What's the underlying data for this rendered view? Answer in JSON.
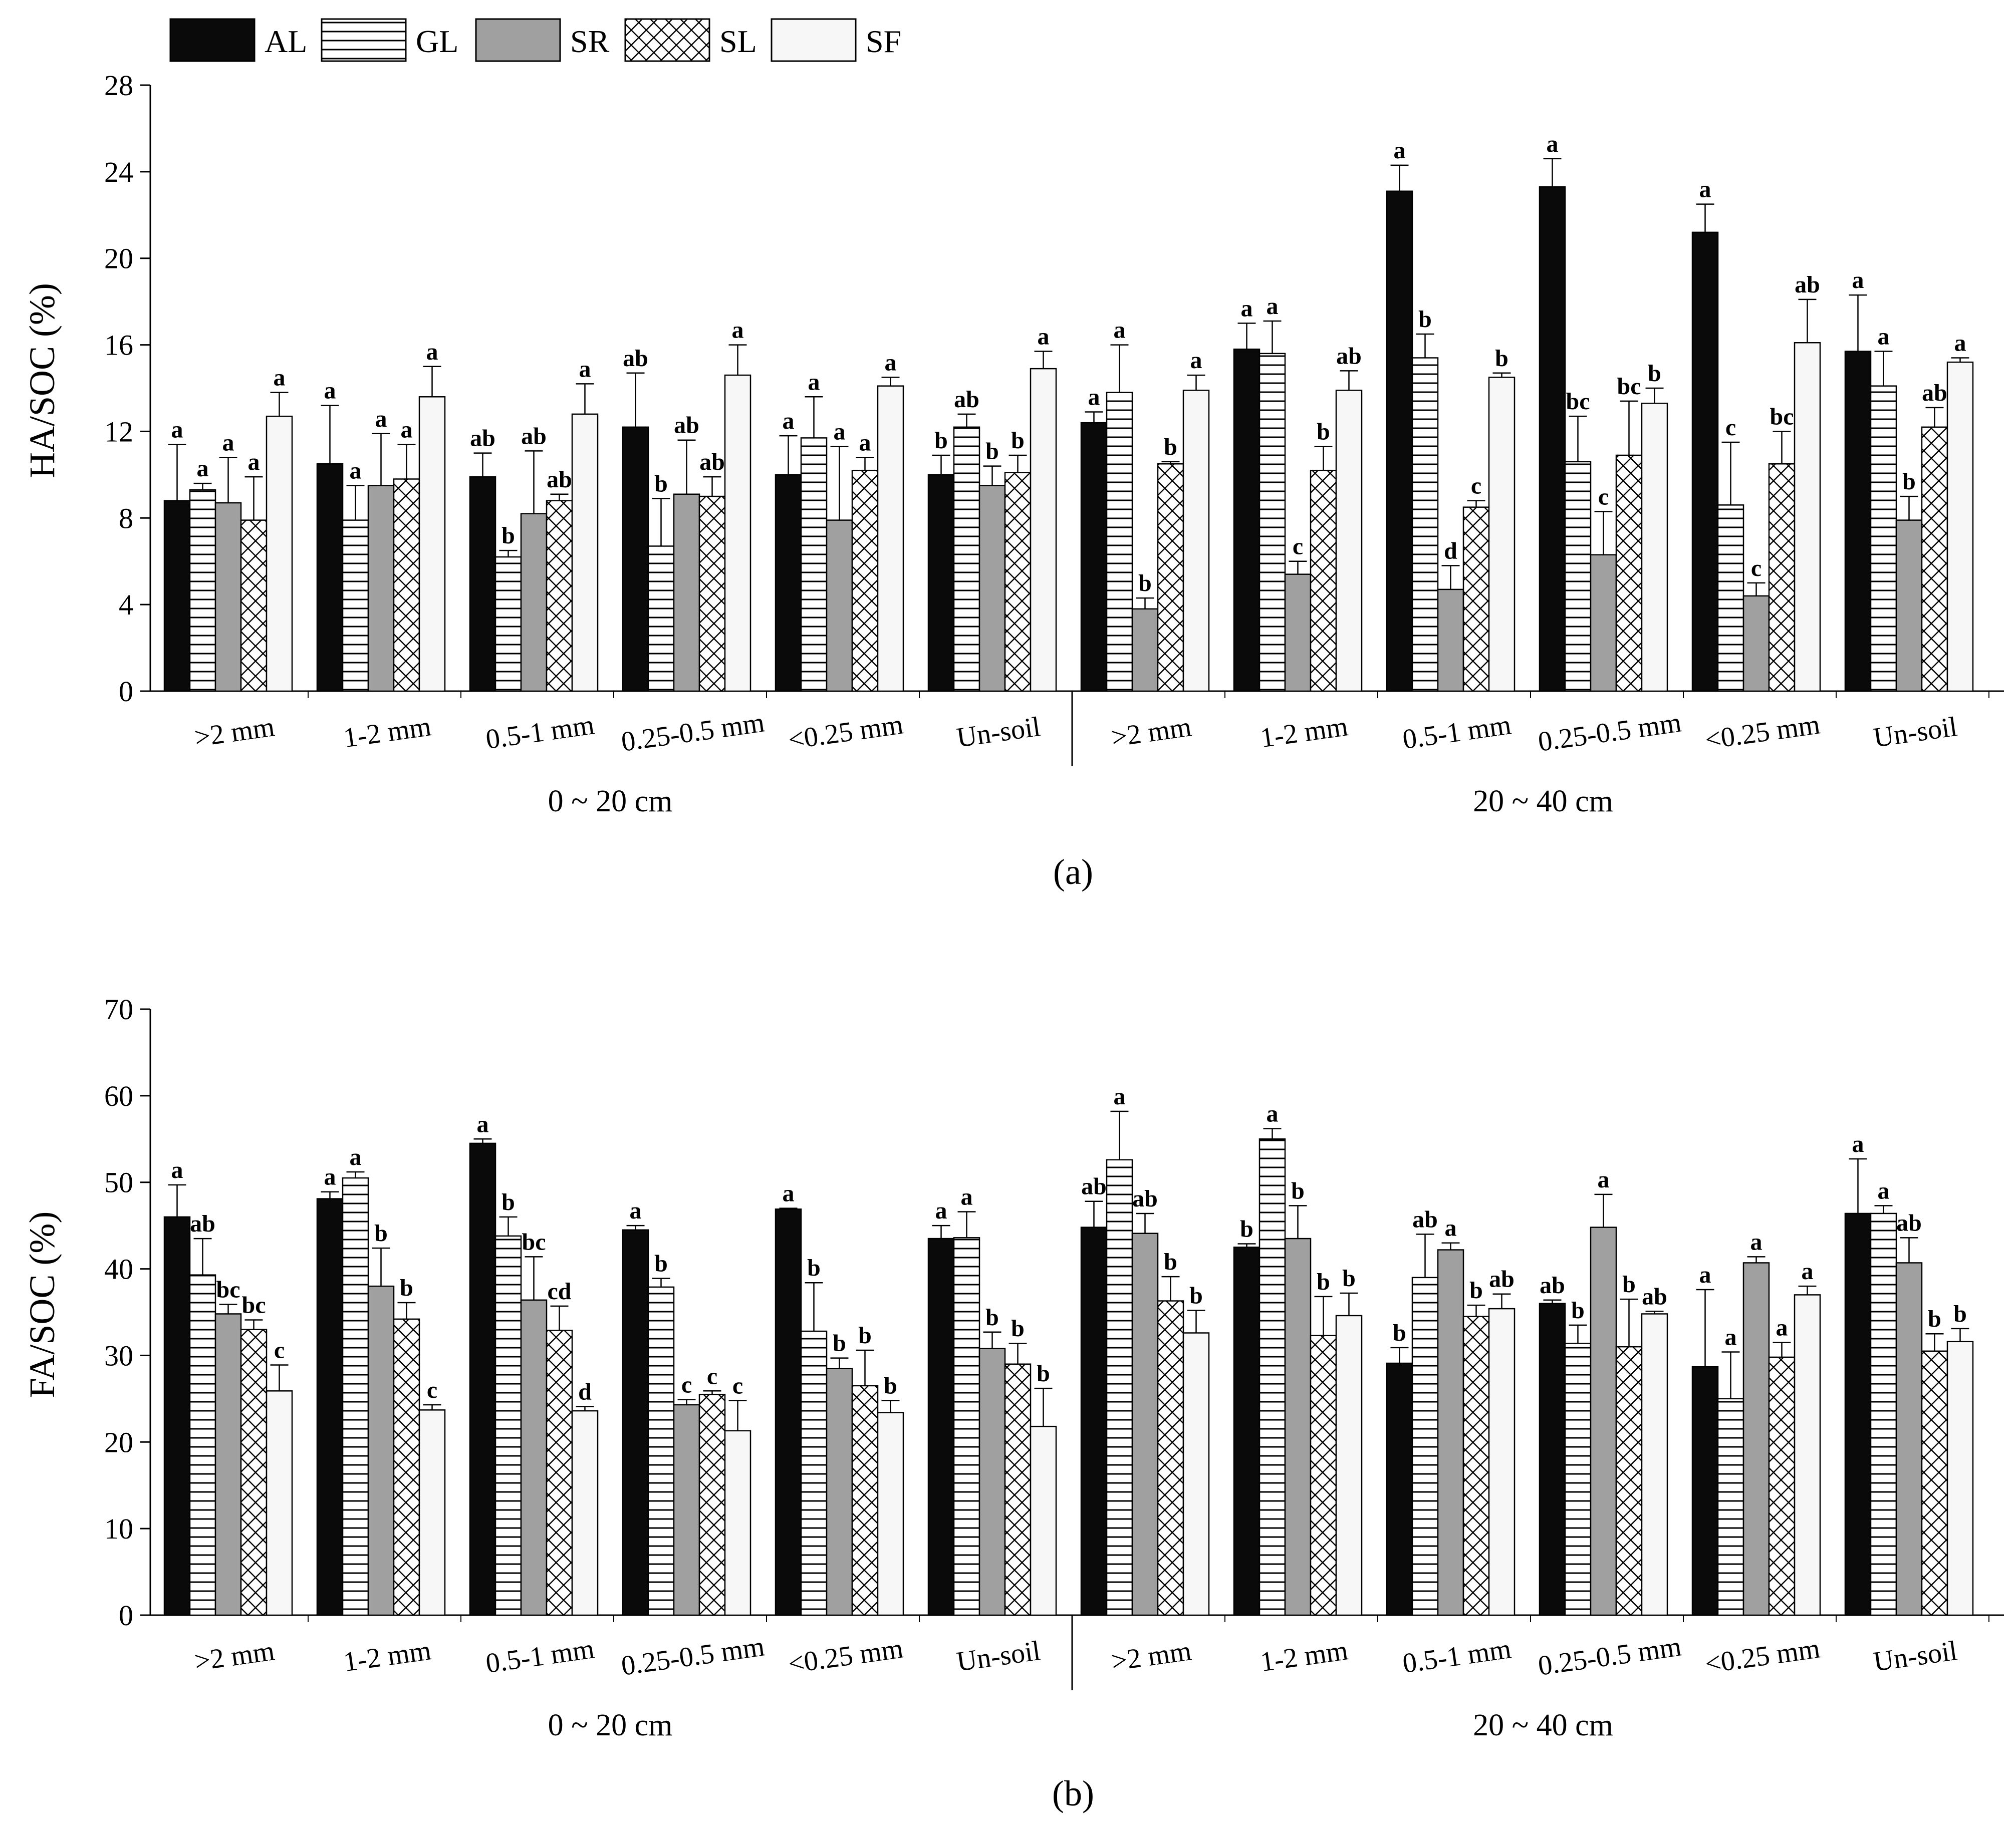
{
  "colors": {
    "AL": "#0a0a0a",
    "GL": "#ffffff",
    "SR": "#a0a0a0",
    "SL": "#ffffff",
    "SF": "#f7f7f7",
    "stroke": "#000000"
  },
  "legend": [
    {
      "key": "AL",
      "label": "AL",
      "pattern": "solid-black"
    },
    {
      "key": "GL",
      "label": "GL",
      "pattern": "horizontal-lines"
    },
    {
      "key": "SR",
      "label": "SR",
      "pattern": "solid-gray"
    },
    {
      "key": "SL",
      "label": "SL",
      "pattern": "crosshatch"
    },
    {
      "key": "SF",
      "label": "SF",
      "pattern": "solid-white"
    }
  ],
  "chart_data": [
    {
      "type": "bar",
      "panel": "(a)",
      "ylabel": "HA/SOC (%)",
      "ylim": [
        0,
        28
      ],
      "yticks": [
        0,
        4,
        8,
        12,
        16,
        20,
        24,
        28
      ],
      "group_labels": [
        "0 ~ 20 cm",
        "20 ~ 40 cm"
      ],
      "categories": [
        ">2 mm",
        "1-2 mm",
        "0.5-1 mm",
        "0.25-0.5 mm",
        "<0.25 mm",
        "Un-soil",
        ">2 mm",
        "1-2 mm",
        "0.5-1 mm",
        "0.25-0.5 mm",
        "<0.25 mm",
        "Un-soil"
      ],
      "series": [
        {
          "name": "AL",
          "values": [
            8.8,
            10.5,
            9.9,
            12.2,
            10.0,
            10.0,
            12.4,
            15.8,
            23.1,
            23.3,
            21.2,
            15.7
          ],
          "errors": [
            2.6,
            2.7,
            1.1,
            2.5,
            1.8,
            0.9,
            0.5,
            1.2,
            1.2,
            1.3,
            1.3,
            2.6
          ],
          "sig": [
            "a",
            "a",
            "ab",
            "ab",
            "a",
            "b",
            "a",
            "a",
            "a",
            "a",
            "a",
            "a"
          ]
        },
        {
          "name": "GL",
          "values": [
            9.3,
            7.9,
            6.2,
            6.7,
            11.7,
            12.2,
            13.8,
            15.6,
            15.4,
            10.6,
            8.6,
            14.1
          ],
          "errors": [
            0.3,
            1.6,
            0.3,
            2.2,
            1.9,
            0.6,
            2.2,
            1.5,
            1.1,
            2.1,
            2.9,
            1.6
          ],
          "sig": [
            "a",
            "a",
            "b",
            "b",
            "a",
            "ab",
            "a",
            "a",
            "b",
            "bc",
            "c",
            "a"
          ]
        },
        {
          "name": "SR",
          "values": [
            8.7,
            9.5,
            8.2,
            9.1,
            7.9,
            9.5,
            3.8,
            5.4,
            4.7,
            6.3,
            4.4,
            7.9
          ],
          "errors": [
            2.1,
            2.4,
            2.9,
            2.5,
            3.4,
            0.9,
            0.5,
            0.6,
            1.1,
            2.0,
            0.6,
            1.1
          ],
          "sig": [
            "a",
            "a",
            "ab",
            "ab",
            "a",
            "b",
            "b",
            "c",
            "d",
            "c",
            "c",
            "b"
          ]
        },
        {
          "name": "SL",
          "values": [
            7.9,
            9.8,
            8.8,
            9.0,
            10.2,
            10.1,
            10.5,
            10.2,
            8.5,
            10.9,
            10.5,
            12.2
          ],
          "errors": [
            2.0,
            1.6,
            0.3,
            0.9,
            0.6,
            0.8,
            0.1,
            1.1,
            0.3,
            2.5,
            1.5,
            0.9
          ],
          "sig": [
            "a",
            "a",
            "ab",
            "ab",
            "a",
            "b",
            "b",
            "b",
            "c",
            "bc",
            "bc",
            "ab"
          ]
        },
        {
          "name": "SF",
          "values": [
            12.7,
            13.6,
            12.8,
            14.6,
            14.1,
            14.9,
            13.9,
            13.9,
            14.5,
            13.3,
            16.1,
            15.2
          ],
          "errors": [
            1.1,
            1.4,
            1.4,
            1.4,
            0.4,
            0.8,
            0.7,
            0.9,
            0.2,
            0.7,
            2.0,
            0.2
          ],
          "sig": [
            "a",
            "a",
            "a",
            "a",
            "a",
            "a",
            "a",
            "ab",
            "b",
            "b",
            "ab",
            "a"
          ]
        }
      ]
    },
    {
      "type": "bar",
      "panel": "(b)",
      "ylabel": "FA/SOC (%)",
      "ylim": [
        0,
        70
      ],
      "yticks": [
        0,
        10,
        20,
        30,
        40,
        50,
        60,
        70
      ],
      "group_labels": [
        "0 ~ 20 cm",
        "20 ~ 40 cm"
      ],
      "categories": [
        ">2 mm",
        "1-2 mm",
        "0.5-1 mm",
        "0.25-0.5 mm",
        "<0.25 mm",
        "Un-soil",
        ">2 mm",
        "1-2 mm",
        "0.5-1 mm",
        "0.25-0.5 mm",
        "<0.25 mm",
        "Un-soil"
      ],
      "series": [
        {
          "name": "AL",
          "values": [
            46.0,
            48.1,
            54.5,
            44.5,
            46.9,
            43.5,
            44.8,
            42.5,
            29.1,
            36.0,
            28.7,
            46.4
          ],
          "errors": [
            3.7,
            0.8,
            0.5,
            0.5,
            0.1,
            1.5,
            3.0,
            0.4,
            1.8,
            0.4,
            8.9,
            6.3
          ],
          "sig": [
            "a",
            "a",
            "a",
            "a",
            "a",
            "a",
            "ab",
            "b",
            "b",
            "ab",
            "a",
            "a"
          ]
        },
        {
          "name": "GL",
          "values": [
            39.3,
            50.5,
            43.8,
            37.9,
            32.8,
            43.6,
            52.6,
            55.0,
            39.0,
            31.4,
            25.0,
            46.4
          ],
          "errors": [
            4.2,
            0.7,
            2.2,
            1.0,
            5.6,
            3.0,
            5.6,
            1.2,
            5.0,
            2.1,
            5.4,
            0.9
          ],
          "sig": [
            "ab",
            "a",
            "b",
            "b",
            "b",
            "a",
            "a",
            "a",
            "ab",
            "b",
            "a",
            "a"
          ]
        },
        {
          "name": "SR",
          "values": [
            34.8,
            38.0,
            36.4,
            24.3,
            28.5,
            30.8,
            44.1,
            43.5,
            42.2,
            44.8,
            40.7,
            40.7
          ],
          "errors": [
            1.1,
            4.4,
            5.0,
            0.6,
            1.2,
            1.9,
            2.3,
            3.8,
            0.8,
            3.8,
            0.7,
            2.9
          ],
          "sig": [
            "bc",
            "b",
            "bc",
            "c",
            "b",
            "b",
            "ab",
            "b",
            "a",
            "a",
            "a",
            "ab"
          ]
        },
        {
          "name": "SL",
          "values": [
            33.0,
            34.2,
            32.9,
            25.5,
            26.5,
            29.0,
            36.3,
            32.3,
            34.5,
            31.0,
            29.8,
            30.5
          ],
          "errors": [
            1.1,
            1.9,
            2.8,
            0.4,
            4.1,
            2.4,
            2.8,
            4.5,
            1.3,
            5.5,
            1.7,
            2.0
          ],
          "sig": [
            "bc",
            "b",
            "cd",
            "c",
            "b",
            "b",
            "b",
            "b",
            "b",
            "b",
            "a",
            "b"
          ]
        },
        {
          "name": "SF",
          "values": [
            25.9,
            23.7,
            23.6,
            21.3,
            23.4,
            21.8,
            32.6,
            34.6,
            35.4,
            34.8,
            37.0,
            31.6
          ],
          "errors": [
            3.0,
            0.6,
            0.5,
            3.5,
            1.4,
            4.4,
            2.6,
            2.6,
            1.7,
            0.3,
            1.0,
            1.5
          ],
          "sig": [
            "c",
            "c",
            "d",
            "c",
            "b",
            "b",
            "b",
            "b",
            "ab",
            "ab",
            "a",
            "b"
          ]
        }
      ]
    }
  ]
}
